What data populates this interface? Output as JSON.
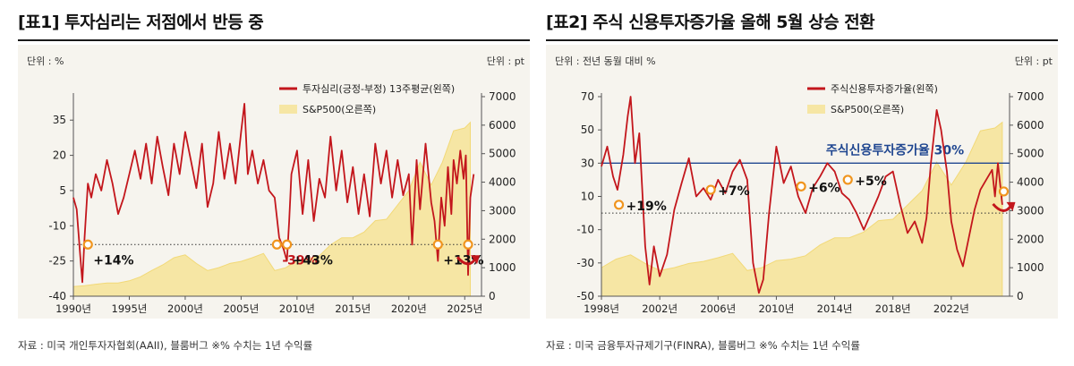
{
  "colors": {
    "sentiment_line": "#c3161c",
    "sp500_area": "#f6e6a4",
    "sp500_edge": "#f2d978",
    "marker": "#f0951e",
    "reference_line": "#1f4690",
    "panel_bg": "#f6f4ee",
    "positive_text": "#111111",
    "negative_text": "#c3161c"
  },
  "icons": [
    "circle-marker-icon",
    "curved-arrow-icon"
  ],
  "panel1": {
    "title": "[표1] 투자심리는 저점에서 반등 중",
    "unit_left": "단위 : %",
    "unit_right": "단위 : pt",
    "legend_line": "투자심리(긍정-부정) 13주평균(왼쪽)",
    "legend_area": "S&P500(오른쪽)",
    "source": "자료 : 미국 개인투자자협회(AAII), 블룸버그 ※% 수치는 1년 수익률"
  },
  "panel2": {
    "title": "[표2] 주식 신용투자증가율 올해 5월 상승 전환",
    "unit_left": "단위 : 전년 동월 대비 %",
    "unit_right": "단위 : pt",
    "legend_line": "주식신용투자증가율(왼쪽)",
    "legend_area": "S&P500(오른쪽)",
    "source": "자료 : 미국 금융투자규제기구(FINRA), 블룸버그 ※% 수치는 1년 수익률"
  },
  "chart_data": [
    {
      "type": "line",
      "title": "[표1] 투자심리는 저점에서 반등 중",
      "xlim": [
        1990,
        2026.5
      ],
      "x_ticks": [
        "1990년",
        "1995년",
        "2000년",
        "2005년",
        "2010년",
        "2015년",
        "2020년",
        "2025년"
      ],
      "x_tick_values": [
        1990,
        1995,
        2000,
        2005,
        2010,
        2015,
        2020,
        2025
      ],
      "y_left": {
        "label": "단위 : %",
        "lim": [
          -40,
          45
        ],
        "ticks": [
          -40,
          -25,
          -10,
          5,
          20,
          35
        ]
      },
      "y_right": {
        "label": "단위 : pt",
        "lim": [
          0,
          7000
        ],
        "ticks": [
          0,
          1000,
          2000,
          3000,
          4000,
          5000,
          6000,
          7000
        ]
      },
      "series": [
        {
          "name": "투자심리(긍정-부정) 13주평균(왼쪽)",
          "axis": "left",
          "kind": "line",
          "x": [
            1990,
            1990.3,
            1990.6,
            1990.8,
            1991,
            1991.3,
            1991.6,
            1992,
            1992.5,
            1993,
            1993.5,
            1994,
            1994.5,
            1995,
            1995.5,
            1996,
            1996.5,
            1997,
            1997.5,
            1998,
            1998.5,
            1999,
            1999.5,
            2000,
            2000.5,
            2001,
            2001.5,
            2002,
            2002.5,
            2003,
            2003.5,
            2004,
            2004.5,
            2005,
            2005.3,
            2005.6,
            2006,
            2006.5,
            2007,
            2007.5,
            2008,
            2008.4,
            2008.8,
            2009.1,
            2009.3,
            2009.5,
            2010,
            2010.5,
            2011,
            2011.5,
            2012,
            2012.5,
            2013,
            2013.5,
            2014,
            2014.5,
            2015,
            2015.5,
            2016,
            2016.5,
            2017,
            2017.5,
            2018,
            2018.5,
            2019,
            2019.5,
            2020,
            2020.3,
            2020.7,
            2021,
            2021.5,
            2022,
            2022.3,
            2022.6,
            2022.9,
            2023.2,
            2023.5,
            2023.8,
            2024,
            2024.3,
            2024.6,
            2024.9,
            2025.1,
            2025.3,
            2025.5,
            2025.8
          ],
          "values": [
            2,
            -3,
            -22,
            -34,
            -15,
            8,
            2,
            12,
            5,
            18,
            8,
            -5,
            2,
            12,
            22,
            10,
            25,
            8,
            28,
            15,
            3,
            25,
            12,
            30,
            18,
            6,
            25,
            -2,
            8,
            30,
            10,
            25,
            8,
            30,
            42,
            12,
            22,
            8,
            18,
            5,
            2,
            -15,
            -20,
            -25,
            -8,
            12,
            22,
            -5,
            18,
            -8,
            10,
            2,
            28,
            5,
            22,
            0,
            15,
            -5,
            12,
            -6,
            25,
            8,
            22,
            2,
            18,
            3,
            12,
            -18,
            18,
            -3,
            25,
            0,
            -8,
            -25,
            2,
            -10,
            15,
            -5,
            18,
            8,
            22,
            10,
            20,
            -31,
            2,
            12
          ]
        },
        {
          "name": "S&P500(오른쪽)",
          "axis": "right",
          "kind": "area",
          "x": [
            1990,
            1991,
            1992,
            1993,
            1994,
            1995,
            1996,
            1997,
            1998,
            1999,
            2000,
            2001,
            2002,
            2003,
            2004,
            2005,
            2006,
            2007,
            2008,
            2009,
            2010,
            2011,
            2012,
            2013,
            2014,
            2015,
            2016,
            2017,
            2018,
            2019,
            2020,
            2021,
            2022,
            2023,
            2024,
            2025,
            2025.5
          ],
          "values": [
            340,
            370,
            420,
            460,
            460,
            540,
            680,
            900,
            1100,
            1350,
            1450,
            1150,
            900,
            1000,
            1150,
            1220,
            1350,
            1500,
            900,
            1000,
            1250,
            1300,
            1420,
            1800,
            2050,
            2050,
            2250,
            2650,
            2700,
            3200,
            3700,
            4700,
            3900,
            4700,
            5800,
            5900,
            6100
          ]
        }
      ],
      "reference_lines": [
        {
          "axis": "left",
          "value": -18
        }
      ],
      "annotations": [
        {
          "text": "+14%",
          "x": 1991.3,
          "y": -18
        },
        {
          "text": "-39%",
          "x": 2008.2,
          "y": -18,
          "color": "red"
        },
        {
          "text": "+43%",
          "x": 2009.1,
          "y": -18
        },
        {
          "text": "+13%",
          "x": 2022.6,
          "y": -18
        },
        {
          "text": "",
          "x": 2025.3,
          "y": -18
        }
      ],
      "legend_position": "top-right"
    },
    {
      "type": "line",
      "title": "[표2] 주식 신용투자증가율 올해 5월 상승 전환",
      "xlim": [
        1998,
        2026
      ],
      "x_ticks": [
        "1998년",
        "2002년",
        "2006년",
        "2010년",
        "2014년",
        "2018년",
        "2022년"
      ],
      "x_tick_values": [
        1998,
        2002,
        2006,
        2010,
        2014,
        2018,
        2022
      ],
      "y_left": {
        "label": "단위 : 전년 동월 대비 %",
        "lim": [
          -50,
          70
        ],
        "ticks": [
          -50,
          -30,
          -10,
          10,
          30,
          50,
          70
        ]
      },
      "y_right": {
        "label": "단위 : pt",
        "lim": [
          0,
          7000
        ],
        "ticks": [
          0,
          1000,
          2000,
          3000,
          4000,
          5000,
          6000,
          7000
        ]
      },
      "series": [
        {
          "name": "주식신용투자증가율(왼쪽)",
          "axis": "left",
          "kind": "line",
          "x": [
            1998,
            1998.4,
            1998.8,
            1999.1,
            1999.5,
            1999.8,
            2000,
            2000.3,
            2000.6,
            2001,
            2001.3,
            2001.6,
            2002,
            2002.5,
            2003,
            2003.5,
            2004,
            2004.5,
            2005,
            2005.5,
            2006,
            2006.5,
            2007,
            2007.5,
            2008,
            2008.4,
            2008.8,
            2009.1,
            2009.5,
            2010,
            2010.5,
            2011,
            2011.5,
            2012,
            2012.5,
            2013,
            2013.5,
            2014,
            2014.5,
            2015,
            2015.5,
            2016,
            2016.5,
            2017,
            2017.5,
            2018,
            2018.5,
            2019,
            2019.5,
            2020,
            2020.3,
            2020.6,
            2021,
            2021.3,
            2021.7,
            2022,
            2022.4,
            2022.8,
            2023.2,
            2023.6,
            2024,
            2024.4,
            2024.8,
            2025,
            2025.2,
            2025.5
          ],
          "values": [
            28,
            40,
            22,
            14,
            35,
            58,
            70,
            30,
            48,
            -20,
            -43,
            -20,
            -38,
            -25,
            2,
            18,
            33,
            10,
            15,
            8,
            20,
            12,
            25,
            32,
            20,
            -30,
            -48,
            -40,
            0,
            40,
            18,
            28,
            10,
            0,
            15,
            22,
            30,
            25,
            12,
            8,
            0,
            -10,
            0,
            10,
            22,
            25,
            5,
            -12,
            -5,
            -18,
            -3,
            30,
            62,
            50,
            25,
            -5,
            -22,
            -32,
            -15,
            2,
            14,
            20,
            26,
            10,
            30,
            5
          ]
        },
        {
          "name": "S&P500(오른쪽)",
          "axis": "right",
          "kind": "area",
          "x": [
            1998,
            1999,
            2000,
            2001,
            2002,
            2003,
            2004,
            2005,
            2006,
            2007,
            2008,
            2009,
            2010,
            2011,
            2012,
            2013,
            2014,
            2015,
            2016,
            2017,
            2018,
            2019,
            2020,
            2021,
            2022,
            2023,
            2024,
            2025,
            2025.5
          ],
          "values": [
            1000,
            1300,
            1450,
            1150,
            900,
            1000,
            1150,
            1220,
            1350,
            1500,
            900,
            1000,
            1250,
            1300,
            1420,
            1800,
            2050,
            2050,
            2250,
            2650,
            2700,
            3200,
            3700,
            4700,
            3900,
            4700,
            5800,
            5900,
            6100
          ]
        }
      ],
      "reference_lines": [
        {
          "axis": "left",
          "value": 30,
          "label": "주식신용투자증가율 30%",
          "style": "solid-blue"
        },
        {
          "axis": "left",
          "value": 0,
          "style": "dotted"
        }
      ],
      "annotations": [
        {
          "text": "+19%",
          "x": 1999.2,
          "y": 5
        },
        {
          "text": "+7%",
          "x": 2005.5,
          "y": 14
        },
        {
          "text": "+6%",
          "x": 2011.7,
          "y": 16
        },
        {
          "text": "+5%",
          "x": 2014.9,
          "y": 20
        },
        {
          "text": "",
          "x": 2025.6,
          "y": 13
        }
      ],
      "legend_position": "top-right"
    }
  ]
}
